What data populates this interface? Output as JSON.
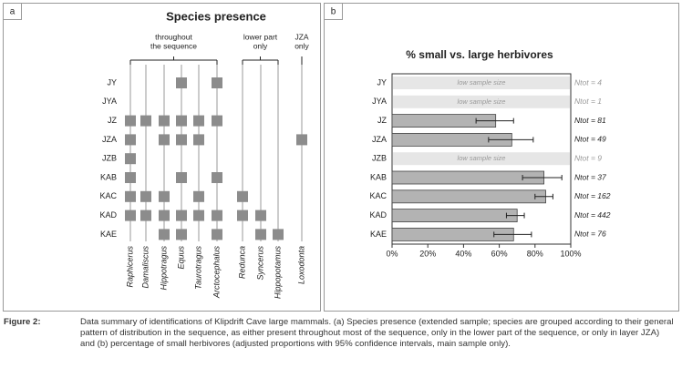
{
  "chart_data": [
    {
      "type": "presence",
      "panel": "a",
      "title": "Species presence",
      "categories": [
        "JY",
        "JYA",
        "JZ",
        "JZA",
        "JZB",
        "KAB",
        "KAC",
        "KAD",
        "KAE"
      ],
      "color": "#8c8c8c",
      "groups": [
        {
          "label": [
            "throughout",
            "the sequence"
          ],
          "species": [
            {
              "name": "Raphicerus",
              "presence": [
                0,
                0,
                1,
                1,
                1,
                1,
                1,
                1,
                0
              ]
            },
            {
              "name": "Damaliscus",
              "presence": [
                0,
                0,
                1,
                0,
                0,
                0,
                1,
                1,
                0
              ]
            },
            {
              "name": "Hippotragus",
              "presence": [
                0,
                0,
                1,
                1,
                0,
                0,
                1,
                1,
                1
              ]
            },
            {
              "name": "Equus",
              "presence": [
                1,
                0,
                1,
                1,
                0,
                1,
                0,
                1,
                1
              ]
            },
            {
              "name": "Taurotragus",
              "presence": [
                0,
                0,
                1,
                1,
                0,
                0,
                1,
                1,
                0
              ]
            },
            {
              "name": "Arctocephalus",
              "presence": [
                1,
                0,
                1,
                0,
                0,
                1,
                0,
                1,
                1
              ]
            }
          ]
        },
        {
          "label": [
            "lower part",
            "only"
          ],
          "species": [
            {
              "name": "Redunca",
              "presence": [
                0,
                0,
                0,
                0,
                0,
                0,
                1,
                1,
                0
              ]
            },
            {
              "name": "Syncerus",
              "presence": [
                0,
                0,
                0,
                0,
                0,
                0,
                0,
                1,
                1
              ]
            },
            {
              "name": "Hippopotamus",
              "presence": [
                0,
                0,
                0,
                0,
                0,
                0,
                0,
                0,
                1
              ]
            }
          ]
        },
        {
          "label": [
            "JZA",
            "only"
          ],
          "species": [
            {
              "name": "Loxodonta",
              "presence": [
                0,
                0,
                0,
                1,
                0,
                0,
                0,
                0,
                0
              ]
            }
          ]
        }
      ]
    },
    {
      "type": "hbar",
      "panel": "b",
      "title": "% small vs. large herbivores",
      "categories": [
        "JY",
        "JYA",
        "JZ",
        "JZA",
        "JZB",
        "KAB",
        "KAC",
        "KAD",
        "KAE"
      ],
      "values": [
        null,
        null,
        58,
        67,
        null,
        85,
        86,
        70,
        68
      ],
      "ci_low": [
        null,
        null,
        47,
        54,
        null,
        73,
        80,
        64,
        57
      ],
      "ci_high": [
        null,
        null,
        68,
        79,
        null,
        95,
        90,
        74,
        78
      ],
      "notes": [
        "low sample size",
        "low sample size",
        null,
        null,
        "low sample size",
        null,
        null,
        null,
        null
      ],
      "n_labels": [
        "Ntot = 4",
        "Ntot = 1",
        "Ntot = 81",
        "Ntot = 49",
        "Ntot = 9",
        "Ntot = 37",
        "Ntot = 162",
        "Ntot = 442",
        "Ntot = 76"
      ],
      "color": "#b3b3b3",
      "xlim": [
        0,
        100
      ],
      "xticks": [
        {
          "value": 0,
          "label": "0%"
        },
        {
          "value": 20,
          "label": "20%"
        },
        {
          "value": 40,
          "label": "40%"
        },
        {
          "value": 60,
          "label": "60%"
        },
        {
          "value": 80,
          "label": "80%"
        },
        {
          "value": 100,
          "label": "100%"
        }
      ]
    }
  ],
  "caption": {
    "label": "Figure 2:",
    "text": "Data summary of identifications of Klipdrift Cave large mammals. (a) Species presence (extended sample; species are grouped according to their general pattern of distribution in the sequence, as either present throughout most of the sequence, only in the lower part of the sequence, or only in layer JZA) and (b) percentage of small herbivores (adjusted proportions with 95% confidence intervals, main sample only)."
  }
}
